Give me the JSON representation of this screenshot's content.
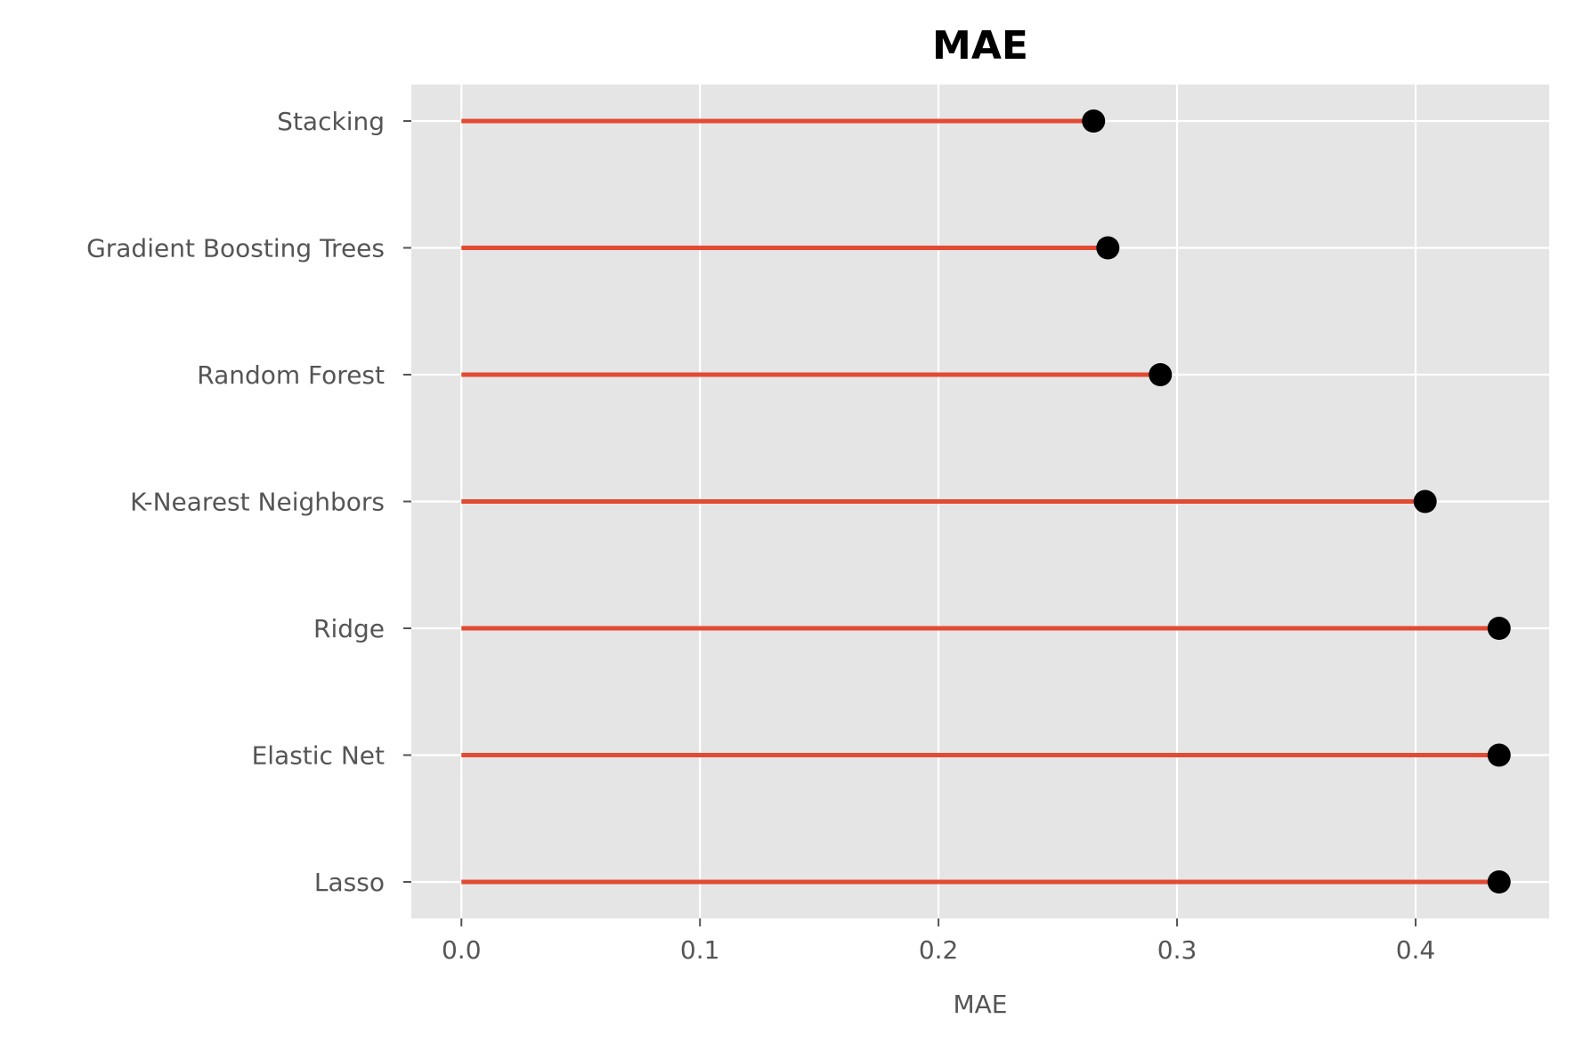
{
  "chart_data": {
    "type": "scatter",
    "subtype": "lollipop-horizontal",
    "title": "MAE",
    "xlabel": "MAE",
    "ylabel": "",
    "categories": [
      "Stacking",
      "Gradient Boosting Trees",
      "Random Forest",
      "K-Nearest Neighbors",
      "Ridge",
      "Elastic Net",
      "Lasso"
    ],
    "values": [
      0.265,
      0.271,
      0.293,
      0.404,
      0.435,
      0.435,
      0.435
    ],
    "xlim": [
      -0.021,
      0.456
    ],
    "xticks": [
      "0.0",
      "0.1",
      "0.2",
      "0.3",
      "0.4"
    ],
    "xtick_values": [
      0.0,
      0.1,
      0.2,
      0.3,
      0.4
    ],
    "grid": true,
    "colors": {
      "panel": "#e5e5e5",
      "grid": "#ffffff",
      "stem": "#e24a33",
      "marker": "#000000",
      "tick_text": "#555555",
      "title_text": "#000000"
    }
  }
}
